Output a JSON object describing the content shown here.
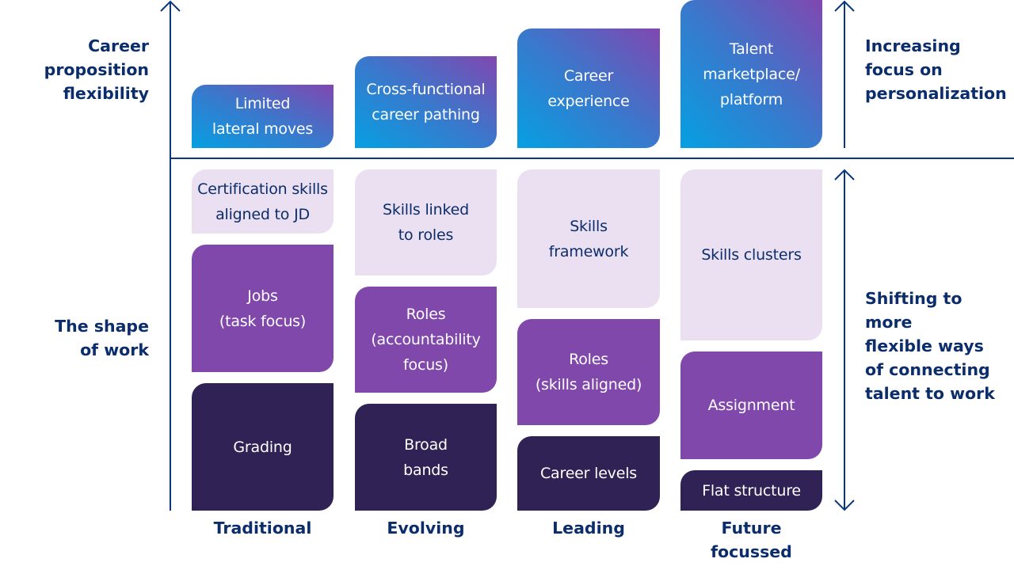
{
  "left_labels": {
    "top": "Career\nproposition\nflexibility",
    "bottom": "The shape\nof work"
  },
  "right_labels": {
    "top": "Increasing\nfocus on\npersonalization",
    "bottom": "Shifting to more\nflexible ways\nof connecting\ntalent to work"
  },
  "columns": [
    "Traditional",
    "Evolving",
    "Leading",
    "Future\nfocussed"
  ],
  "career_boxes": [
    "Limited\nlateral moves",
    "Cross-functional\ncareer pathing",
    "Career\nexperience",
    "Talent\nmarketplace/\nplatform"
  ],
  "skills_boxes": [
    "Certification skills\naligned to JD",
    "Skills linked\nto roles",
    "Skills\nframework",
    "Skills clusters"
  ],
  "role_boxes": [
    "Jobs\n(task focus)",
    "Roles\n(accountability\nfocus)",
    "Roles\n(skills aligned)",
    "Assignment"
  ],
  "structure_boxes": [
    "Grading",
    "Broad\nbands",
    "Career levels",
    "Flat structure"
  ],
  "colors": {
    "text": "#0b2d6b",
    "gradient_start": "#05a0e2",
    "gradient_end": "#8147b0",
    "light": "#ebe0f2",
    "mid": "#8048ab",
    "dark": "#312255"
  }
}
